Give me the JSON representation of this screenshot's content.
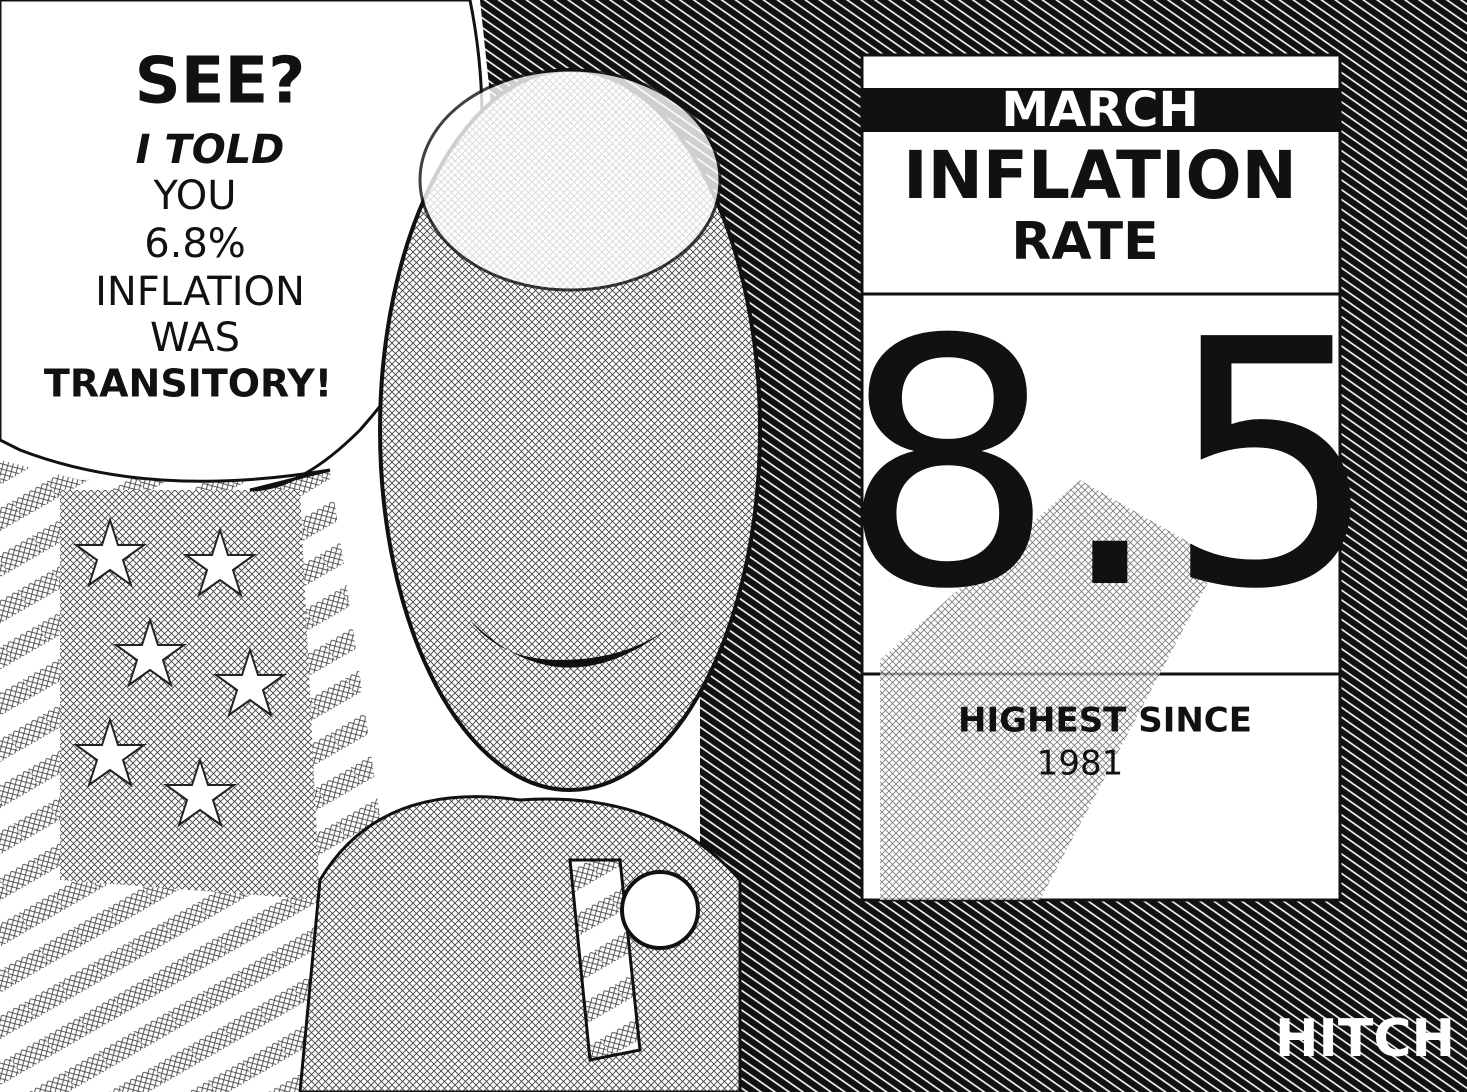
{
  "speech_bubble": {
    "lines": [
      "SEE?",
      "I TOLD",
      "YOU",
      "6.8%",
      "INFLATION",
      "WAS",
      "TRANSITORY!"
    ]
  },
  "sign": {
    "header": "MARCH",
    "title_lines": [
      "INFLATION",
      "RATE"
    ],
    "value": "8.5",
    "footer_lines": [
      "HIGHEST SINCE",
      "1981"
    ]
  },
  "signature": "HITCH"
}
